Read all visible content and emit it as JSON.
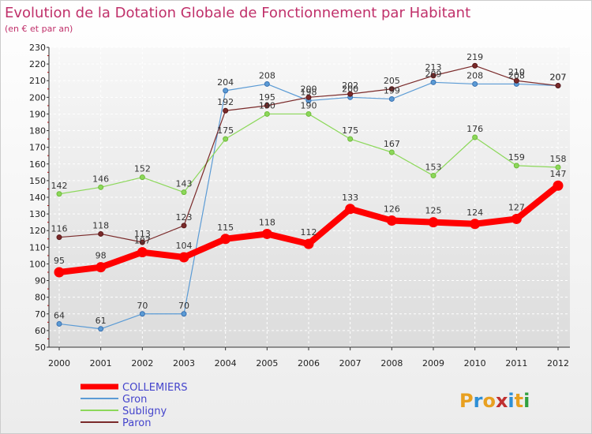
{
  "chart_data": {
    "type": "line",
    "title": "Evolution de la Dotation Globale de Fonctionnement par Habitant",
    "subtitle": "(en € et par an)",
    "xlabel": "",
    "ylabel": "",
    "x": [
      "2000",
      "2001",
      "2002",
      "2003",
      "2004",
      "2005",
      "2006",
      "2007",
      "2008",
      "2009",
      "2010",
      "2011",
      "2012"
    ],
    "ylim": [
      50,
      230
    ],
    "yticks": [
      50,
      60,
      70,
      80,
      90,
      100,
      110,
      120,
      130,
      140,
      150,
      160,
      170,
      180,
      190,
      200,
      210,
      220,
      230
    ],
    "grid": true,
    "legend_position": "bottom-left",
    "series": [
      {
        "name": "COLLEMIERS",
        "color": "#ff0000",
        "values": [
          95,
          98,
          107,
          104,
          115,
          118,
          112,
          133,
          126,
          125,
          124,
          127,
          147
        ]
      },
      {
        "name": "Gron",
        "color": "#5b9bd5",
        "values": [
          64,
          61,
          70,
          70,
          204,
          208,
          198,
          200,
          199,
          209,
          208,
          208,
          207
        ]
      },
      {
        "name": "Subligny",
        "color": "#8cd85a",
        "values": [
          142,
          146,
          152,
          143,
          175,
          190,
          190,
          175,
          167,
          153,
          176,
          159,
          158
        ]
      },
      {
        "name": "Paron",
        "color": "#7a2a2a",
        "values": [
          116,
          118,
          113,
          123,
          192,
          195,
          200,
          202,
          205,
          213,
          219,
          210,
          207
        ]
      }
    ]
  },
  "logo": {
    "text": "Proxiti"
  }
}
